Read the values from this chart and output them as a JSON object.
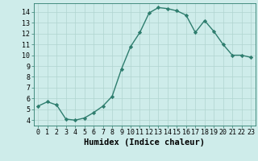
{
  "x": [
    0,
    1,
    2,
    3,
    4,
    5,
    6,
    7,
    8,
    9,
    10,
    11,
    12,
    13,
    14,
    15,
    16,
    17,
    18,
    19,
    20,
    21,
    22,
    23
  ],
  "y": [
    5.3,
    5.7,
    5.4,
    4.1,
    4.0,
    4.2,
    4.7,
    5.3,
    6.2,
    8.7,
    10.8,
    12.1,
    13.9,
    14.4,
    14.3,
    14.1,
    13.7,
    12.1,
    13.2,
    12.2,
    11.0,
    10.0,
    10.0,
    9.8
  ],
  "line_color": "#2e7d6e",
  "marker": "D",
  "marker_size": 2.2,
  "bg_color": "#ceecea",
  "grid_color": "#b0d4d0",
  "xlabel": "Humidex (Indice chaleur)",
  "xlim": [
    -0.5,
    23.5
  ],
  "ylim": [
    3.5,
    14.8
  ],
  "yticks": [
    4,
    5,
    6,
    7,
    8,
    9,
    10,
    11,
    12,
    13,
    14
  ],
  "xticks": [
    0,
    1,
    2,
    3,
    4,
    5,
    6,
    7,
    8,
    9,
    10,
    11,
    12,
    13,
    14,
    15,
    16,
    17,
    18,
    19,
    20,
    21,
    22,
    23
  ],
  "tick_label_fontsize": 6.0,
  "xlabel_fontsize": 7.5,
  "line_width": 1.0,
  "spine_color": "#2e7d6e"
}
